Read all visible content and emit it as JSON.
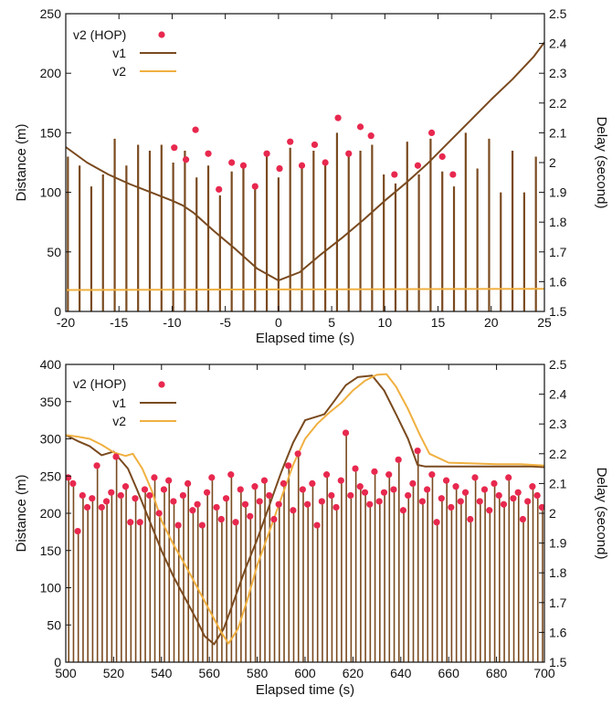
{
  "chart_data": [
    {
      "type": "line",
      "xlabel": "Elapsed time (s)",
      "ylabel": "Distance (m)",
      "y2label": "Delay (second)",
      "xlim": [
        -20,
        25
      ],
      "ylim": [
        0,
        250
      ],
      "y2lim": [
        1.5,
        2.5
      ],
      "xticks": [
        -20,
        -15,
        -10,
        -5,
        0,
        5,
        10,
        15,
        20,
        25
      ],
      "yticks": [
        0,
        50,
        100,
        150,
        200,
        250
      ],
      "y2ticks": [
        1.5,
        1.6,
        1.7,
        1.8,
        1.9,
        2.0,
        2.1,
        2.2,
        2.3,
        2.4,
        2.5
      ],
      "y2ticklabels": [
        "1.5",
        "1.6",
        "1.7",
        "1.8",
        "1.9",
        "2",
        "2.1",
        "2.2",
        "2.3",
        "2.4",
        "2.5"
      ],
      "legend_position": "top-left",
      "colors": {
        "v1": "#7a4a1f",
        "v2": "#f0b040",
        "hop": "#e8284e"
      },
      "series": [
        {
          "name": "v1",
          "kind": "line",
          "x": [
            -20,
            -18,
            -16,
            -14,
            -12,
            -10,
            -9,
            -8,
            -6,
            -4,
            -2,
            0,
            2,
            4,
            6,
            8,
            10,
            12,
            14,
            16,
            18,
            20,
            22,
            24,
            25
          ],
          "y": [
            138,
            125,
            115,
            107,
            100,
            93,
            89,
            83,
            67,
            52,
            36,
            26,
            33,
            48,
            62,
            77,
            93,
            108,
            124,
            142,
            160,
            178,
            195,
            214,
            226
          ]
        },
        {
          "name": "v2",
          "kind": "line",
          "x": [
            -20,
            25
          ],
          "y": [
            18,
            19
          ]
        },
        {
          "name": "v2 (HOP)",
          "kind": "scatter",
          "axis": "y2",
          "x": [
            -9.8,
            -8.7,
            -7.8,
            -6.6,
            -5.6,
            -4.4,
            -3.3,
            -2.2,
            -1.1,
            0.1,
            1.1,
            2.2,
            3.4,
            4.4,
            5.6,
            6.6,
            7.7,
            8.7,
            10.9,
            13.1,
            14.4,
            15.4,
            16.4
          ],
          "y": [
            2.05,
            2.01,
            2.11,
            2.03,
            1.91,
            2.0,
            1.99,
            1.92,
            2.03,
            1.98,
            2.07,
            1.99,
            2.06,
            2.0,
            2.15,
            2.03,
            2.12,
            2.09,
            1.96,
            1.99,
            2.1,
            2.02,
            1.96
          ]
        },
        {
          "name": "spikes",
          "kind": "impulse",
          "axis": "y2",
          "x": [
            -19.8,
            -18.7,
            -17.6,
            -16.5,
            -15.4,
            -14.3,
            -13.2,
            -12.1,
            -11.0,
            -9.9,
            -8.8,
            -7.7,
            -6.6,
            -5.5,
            -4.4,
            -3.3,
            -2.2,
            -1.1,
            0.0,
            1.1,
            2.2,
            3.3,
            4.4,
            5.5,
            6.6,
            7.7,
            8.8,
            9.9,
            11.0,
            12.1,
            13.2,
            14.3,
            15.4,
            16.5,
            17.6,
            18.7,
            19.8,
            20.9,
            22.0,
            23.1,
            24.2
          ],
          "y": [
            2.02,
            1.99,
            1.92,
            1.96,
            2.08,
            1.99,
            2.06,
            2.04,
            2.06,
            2.0,
            2.04,
            1.95,
            1.99,
            1.89,
            1.97,
            1.98,
            1.93,
            2.02,
            1.95,
            2.05,
            2.0,
            2.04,
            2.0,
            2.1,
            2.03,
            2.04,
            2.06,
            1.96,
            1.93,
            2.07,
            1.96,
            2.08,
            1.97,
            1.92,
            2.1,
            1.98,
            2.08,
            1.9,
            2.04,
            1.9,
            2.02
          ]
        }
      ]
    },
    {
      "type": "line",
      "xlabel": "Elapsed time (s)",
      "ylabel": "Distance (m)",
      "y2label": "Delay (second)",
      "xlim": [
        500,
        700
      ],
      "ylim": [
        0,
        400
      ],
      "y2lim": [
        1.5,
        2.5
      ],
      "xticks": [
        500,
        520,
        540,
        560,
        580,
        600,
        620,
        640,
        660,
        680,
        700
      ],
      "yticks": [
        0,
        50,
        100,
        150,
        200,
        250,
        300,
        350,
        400
      ],
      "y2ticks": [
        1.5,
        1.6,
        1.7,
        1.8,
        1.9,
        2.0,
        2.1,
        2.2,
        2.3,
        2.4,
        2.5
      ],
      "y2ticklabels": [
        "1.5",
        "1.6",
        "1.7",
        "1.8",
        "1.9",
        "2",
        "2.1",
        "2.2",
        "2.3",
        "2.4",
        "2.5"
      ],
      "legend_position": "top-left",
      "colors": {
        "v1": "#7a4a1f",
        "v2": "#f0b040",
        "hop": "#e8284e"
      },
      "series": [
        {
          "name": "v1",
          "kind": "line",
          "x": [
            500,
            505,
            510,
            515,
            520,
            522,
            526,
            530,
            535,
            540,
            545,
            550,
            555,
            558,
            562,
            566,
            570,
            575,
            580,
            585,
            590,
            595,
            600,
            605,
            608,
            612,
            617,
            622,
            628,
            633,
            638,
            643,
            647,
            650,
            660,
            670,
            680,
            690,
            695,
            700
          ],
          "y": [
            305,
            297,
            290,
            278,
            283,
            275,
            260,
            230,
            190,
            150,
            115,
            85,
            55,
            35,
            24,
            45,
            80,
            125,
            165,
            210,
            255,
            295,
            325,
            330,
            333,
            350,
            372,
            383,
            385,
            365,
            333,
            300,
            265,
            263,
            263,
            263,
            263,
            263,
            263,
            262
          ]
        },
        {
          "name": "v2",
          "kind": "line",
          "x": [
            500,
            505,
            510,
            515,
            520,
            525,
            528,
            532,
            536,
            540,
            545,
            550,
            555,
            560,
            565,
            568,
            572,
            576,
            580,
            585,
            590,
            595,
            600,
            605,
            610,
            615,
            620,
            625,
            630,
            634,
            638,
            643,
            648,
            652,
            660,
            670,
            680,
            690,
            695,
            700
          ],
          "y": [
            305,
            303,
            300,
            292,
            282,
            277,
            280,
            260,
            230,
            190,
            158,
            130,
            100,
            70,
            40,
            25,
            45,
            85,
            130,
            175,
            220,
            265,
            300,
            320,
            335,
            348,
            365,
            378,
            386,
            387,
            370,
            340,
            305,
            280,
            268,
            267,
            266,
            266,
            265,
            264
          ]
        },
        {
          "name": "v2 (HOP)",
          "kind": "scatter",
          "axis": "y2",
          "x": [
            501,
            503,
            505,
            507,
            509,
            511,
            513,
            515,
            517,
            519,
            521,
            523,
            525,
            527,
            529,
            531,
            533,
            535,
            537,
            539,
            541,
            543,
            545,
            547,
            549,
            551,
            553,
            555,
            557,
            559,
            561,
            563,
            565,
            567,
            569,
            571,
            573,
            575,
            577,
            579,
            581,
            583,
            585,
            587,
            589,
            591,
            593,
            595,
            597,
            599,
            601,
            603,
            605,
            607,
            609,
            611,
            613,
            615,
            617,
            619,
            621,
            623,
            625,
            627,
            629,
            631,
            633,
            635,
            637,
            639,
            641,
            643,
            645,
            647,
            649,
            651,
            653,
            655,
            657,
            659,
            661,
            663,
            665,
            667,
            669,
            671,
            673,
            675,
            677,
            679,
            681,
            683,
            685,
            687,
            689,
            691,
            693,
            695,
            697,
            699
          ],
          "y": [
            2.12,
            2.1,
            1.94,
            2.06,
            2.02,
            2.05,
            2.16,
            2.02,
            2.04,
            2.07,
            2.19,
            2.06,
            2.09,
            1.97,
            2.05,
            1.97,
            2.08,
            2.06,
            2.12,
            2.0,
            2.08,
            2.11,
            2.04,
            1.96,
            2.06,
            2.1,
            2.01,
            2.03,
            1.96,
            2.07,
            2.12,
            2.02,
            1.98,
            2.05,
            2.13,
            1.97,
            2.08,
            2.03,
            1.99,
            2.09,
            2.04,
            2.11,
            2.06,
            1.98,
            2.03,
            2.1,
            2.16,
            2.01,
            2.2,
            2.08,
            2.03,
            2.1,
            1.96,
            2.04,
            2.13,
            2.06,
            2.02,
            2.11,
            2.27,
            2.06,
            2.15,
            2.09,
            2.07,
            2.03,
            2.14,
            2.04,
            2.07,
            2.13,
            2.08,
            2.18,
            2.01,
            2.06,
            2.1,
            2.21,
            2.04,
            2.08,
            2.13,
            1.97,
            2.05,
            2.11,
            2.02,
            2.09,
            2.04,
            2.07,
            1.98,
            2.12,
            2.04,
            2.08,
            2.01,
            2.1,
            2.06,
            2.03,
            2.12,
            2.05,
            2.07,
            1.98,
            2.04,
            2.09,
            2.06,
            2.02
          ]
        }
      ]
    }
  ],
  "legend_labels": {
    "hop": "v2 (HOP)",
    "v1": "v1",
    "v2": "v2"
  }
}
